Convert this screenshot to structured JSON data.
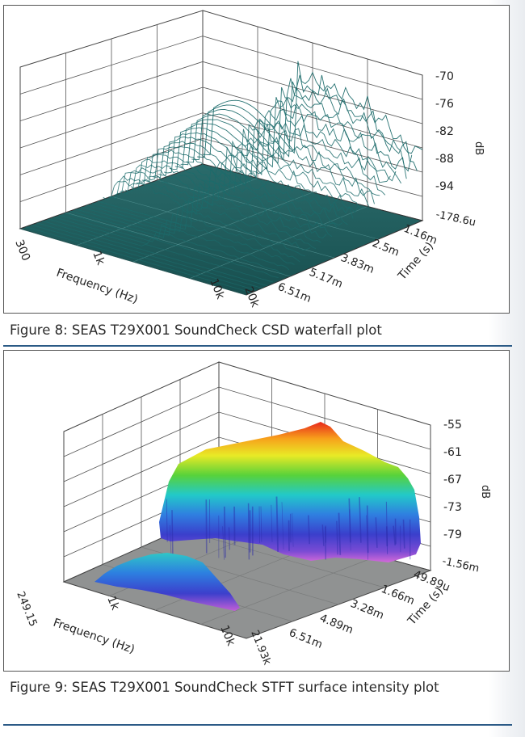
{
  "figures": [
    {
      "caption": "Figure 8: SEAS T29X001 SoundCheck CSD waterfall plot",
      "chart_data": {
        "type": "waterfall",
        "xlabel": "Frequency (Hz)",
        "x_ticks": [
          "300",
          "1k",
          "10k",
          "20k"
        ],
        "x_scale": "log",
        "xlim": [
          300,
          20000
        ],
        "zlabel": "Time (s)",
        "time_ticks": [
          "1.16m",
          "2.5m",
          "3.83m",
          "5.17m",
          "6.51m"
        ],
        "ylabel": "dB",
        "db_ticks": [
          "-70",
          "-76",
          "-82",
          "-88",
          "-94",
          "-178.6u"
        ],
        "colors": {
          "trace": "#1c6b6b",
          "floor": "#1f5a5a"
        }
      }
    },
    {
      "caption": "Figure 9: SEAS T29X001 SoundCheck STFT surface intensity plot",
      "chart_data": {
        "type": "surface",
        "xlabel": "Frequency (Hz)",
        "x_ticks": [
          "249.15",
          "1k",
          "10k",
          "21.93k"
        ],
        "x_scale": "log",
        "xlim": [
          249.15,
          21930
        ],
        "zlabel": "Time (s)",
        "time_ticks": [
          "49.89u",
          "1.66m",
          "3.28m",
          "4.89m",
          "6.51m"
        ],
        "ylabel": "dB",
        "db_ticks": [
          "-55",
          "-61",
          "-67",
          "-73",
          "-79",
          "-1.56m"
        ],
        "colors": {
          "floor": "#8f9090",
          "hot": "#e8281c",
          "cold": "#c25fd6"
        }
      }
    }
  ]
}
